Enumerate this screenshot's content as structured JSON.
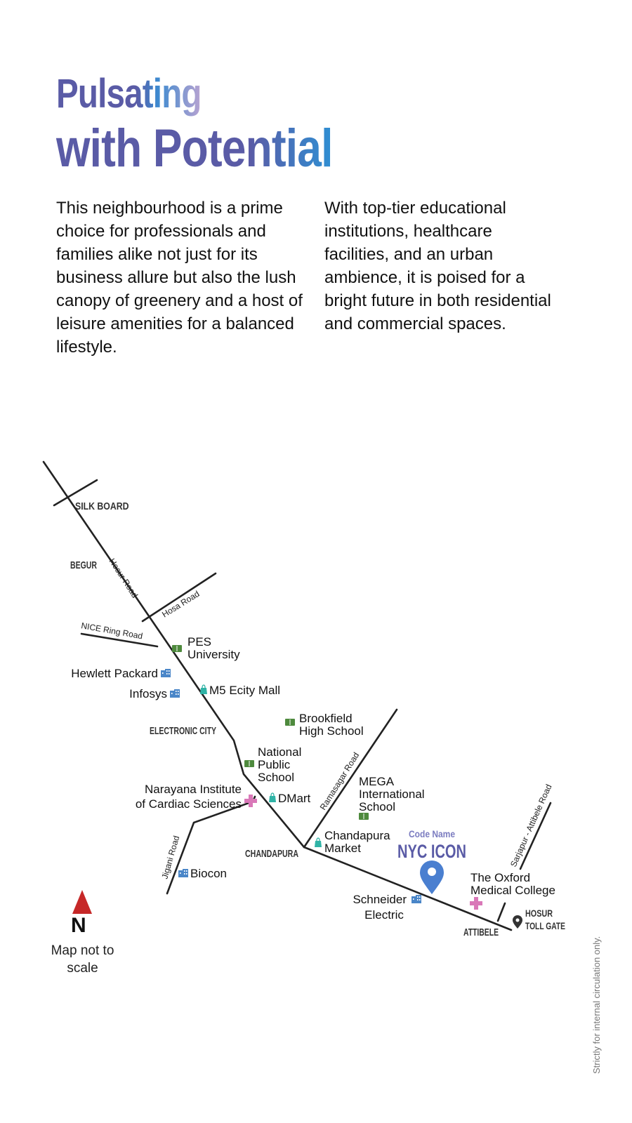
{
  "heading": {
    "line1": "Pulsating",
    "line2": "with Potential"
  },
  "paragraphs": [
    "This neighbourhood is a prime choice for professionals and families alike not just for its business allure but also the lush canopy of greenery and a host of leisure amenities for a balanced lifestyle.",
    "With top-tier educational institutions, healthcare facilities, and an urban ambience, it is poised for a bright future in both residential and commercial spaces."
  ],
  "map": {
    "areas": {
      "silk_board": "SILK BOARD",
      "begur": "BEGUR",
      "electronic_city": "ELECTRONIC CITY",
      "chandapura": "CHANDAPURA",
      "attibele": "ATTIBELE",
      "hosur_toll_gate_1": "HOSUR",
      "hosur_toll_gate_2": "TOLL GATE"
    },
    "roads": {
      "hosur_road": "Hosur Road",
      "hosa_road": "Hosa Road",
      "nice_ring_road": "NICE Ring Road",
      "ramasagar_road": "Ramasagar Road",
      "jigani_road": "Jigani Road",
      "sarjapur_attibele_road": "Sarjapur - Attibele Road"
    },
    "landmarks": {
      "pes_1": "PES",
      "pes_2": "University",
      "hewlett_packard": "Hewlett Packard",
      "infosys": "Infosys",
      "m5_mall": "M5 Ecity Mall",
      "brookfield_1": "Brookfield",
      "brookfield_2": "High School",
      "nps_1": "National",
      "nps_2": "Public",
      "nps_3": "School",
      "narayana_1": "Narayana Institute",
      "narayana_2": "of Cardiac Sciences",
      "dmart": "DMart",
      "mega_1": "MEGA",
      "mega_2": "International",
      "mega_3": "School",
      "chandapura_market_1": "Chandapura",
      "chandapura_market_2": "Market",
      "biocon": "Biocon",
      "schneider_1": "Schneider",
      "schneider_2": "Electric",
      "oxford_1": "The Oxford",
      "oxford_2": "Medical College"
    },
    "project": {
      "code_name": "Code Name",
      "name": "NYC ICON"
    },
    "icons": {
      "school": "book-icon",
      "office": "building-icon",
      "shopping": "shopping-bag-icon",
      "hospital": "medical-cross-icon",
      "project": "location-pin-icon",
      "toll": "location-marker-icon",
      "compass": "north-arrow-icon"
    },
    "colors": {
      "road": "#222222",
      "school": "#4e8a3d",
      "office": "#4a86c8",
      "shopping": "#2fb3a6",
      "hospital": "#d978b8",
      "project_pin": "#4a7fd0",
      "north_arrow": "#c62828"
    }
  },
  "compass": {
    "letter": "N",
    "note": "Map not to scale"
  },
  "footnote": "Strictly for internal circulation only."
}
